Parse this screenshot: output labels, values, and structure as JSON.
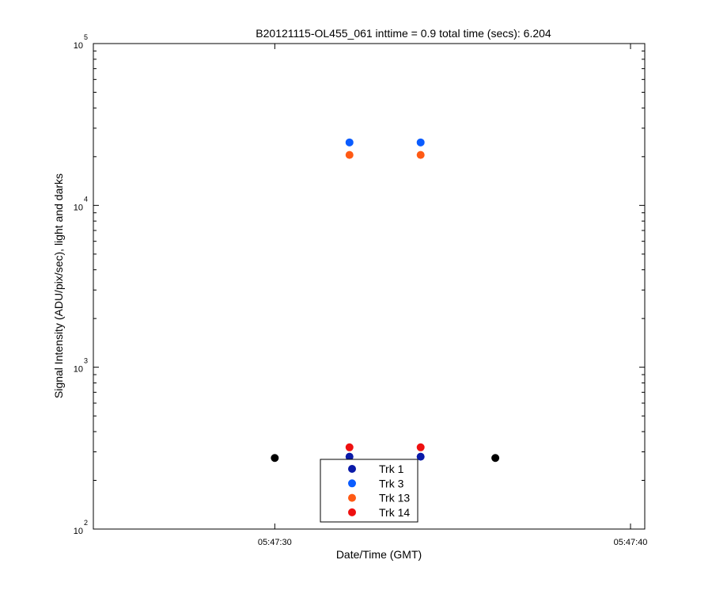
{
  "chart_data": {
    "type": "scatter",
    "title": "B20121115-OL455_061 inttime = 0.9 total time (secs): 6.204",
    "xlabel": "Date/Time (GMT)",
    "ylabel": "Signal Intensity (ADU/pix/sec), light and darks",
    "yscale": "log",
    "ylim": [
      100,
      100000
    ],
    "xlim": [
      "05:47:24.9",
      "05:47:40.4"
    ],
    "x_ticks": [
      "05:47:30",
      "05:47:40"
    ],
    "y_ticks": [
      {
        "base": "10",
        "exp": "2",
        "value": 100
      },
      {
        "base": "10",
        "exp": "3",
        "value": 1000
      },
      {
        "base": "10",
        "exp": "4",
        "value": 10000
      },
      {
        "base": "10",
        "exp": "5",
        "value": 100000
      }
    ],
    "grid": false,
    "legend_position": "bottom-center",
    "series": [
      {
        "name": "Trk 1",
        "color": "#0a1aa8",
        "points": [
          {
            "x": "05:47:32.1",
            "y": 280
          },
          {
            "x": "05:47:34.1",
            "y": 280
          }
        ]
      },
      {
        "name": "Trk 3",
        "color": "#0a5cff",
        "points": [
          {
            "x": "05:47:32.1",
            "y": 24500
          },
          {
            "x": "05:47:34.1",
            "y": 24500
          }
        ]
      },
      {
        "name": "Trk 13",
        "color": "#ff5a14",
        "points": [
          {
            "x": "05:47:32.1",
            "y": 20500
          },
          {
            "x": "05:47:34.1",
            "y": 20500
          }
        ]
      },
      {
        "name": "Trk 14",
        "color": "#ee1010",
        "points": [
          {
            "x": "05:47:32.1",
            "y": 320
          },
          {
            "x": "05:47:34.1",
            "y": 320
          }
        ]
      }
    ],
    "dark_points": {
      "color": "#000000",
      "points": [
        {
          "x": "05:47:30.0",
          "y": 275
        },
        {
          "x": "05:47:36.2",
          "y": 275
        }
      ]
    }
  }
}
